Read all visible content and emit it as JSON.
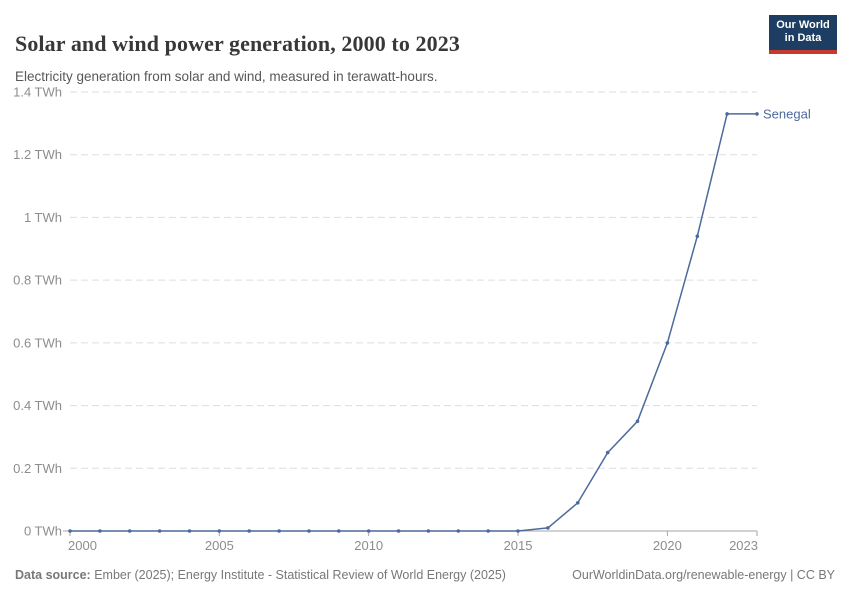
{
  "header": {
    "title": "Solar and wind power generation, 2000 to 2023",
    "subtitle": "Electricity generation from solar and wind, measured in terawatt-hours."
  },
  "logo": {
    "line1": "Our World",
    "line2": "in Data",
    "bg_color": "#1d3d63",
    "accent_color": "#c53a2c"
  },
  "footer": {
    "datasource_label": "Data source:",
    "datasource_text": " Ember (2025); Energy Institute - Statistical Review of World Energy (2025)",
    "link_text": "OurWorldinData.org/renewable-energy | CC BY"
  },
  "chart_data": {
    "type": "line",
    "title": "Solar and wind power generation, 2000 to 2023",
    "unit": "TWh",
    "x": [
      2000,
      2001,
      2002,
      2003,
      2004,
      2005,
      2006,
      2007,
      2008,
      2009,
      2010,
      2011,
      2012,
      2013,
      2014,
      2015,
      2016,
      2017,
      2018,
      2019,
      2020,
      2021,
      2022,
      2023
    ],
    "series": [
      {
        "name": "Senegal",
        "color": "#4C6A9C",
        "values": [
          0,
          0,
          0,
          0,
          0,
          0,
          0,
          0,
          0,
          0,
          0,
          0,
          0,
          0,
          0,
          0,
          0.01,
          0.09,
          0.25,
          0.35,
          0.6,
          0.94,
          1.33,
          1.33
        ]
      }
    ],
    "ylim": [
      0,
      1.4
    ],
    "yticks": [
      0,
      0.2,
      0.4,
      0.6,
      0.8,
      1.0,
      1.2,
      1.4
    ],
    "ytick_labels": [
      "0 TWh",
      "0.2 TWh",
      "0.4 TWh",
      "0.6 TWh",
      "0.8 TWh",
      "1 TWh",
      "1.2 TWh",
      "1.4 TWh"
    ],
    "xticks": [
      2000,
      2005,
      2010,
      2015,
      2020,
      2023
    ],
    "grid": "horizontal-dashed",
    "grid_color": "#dddddd",
    "axis_color": "#a6a6a6",
    "tick_label_color": "#8d8d8d",
    "legend_position": "end-of-line-label"
  }
}
